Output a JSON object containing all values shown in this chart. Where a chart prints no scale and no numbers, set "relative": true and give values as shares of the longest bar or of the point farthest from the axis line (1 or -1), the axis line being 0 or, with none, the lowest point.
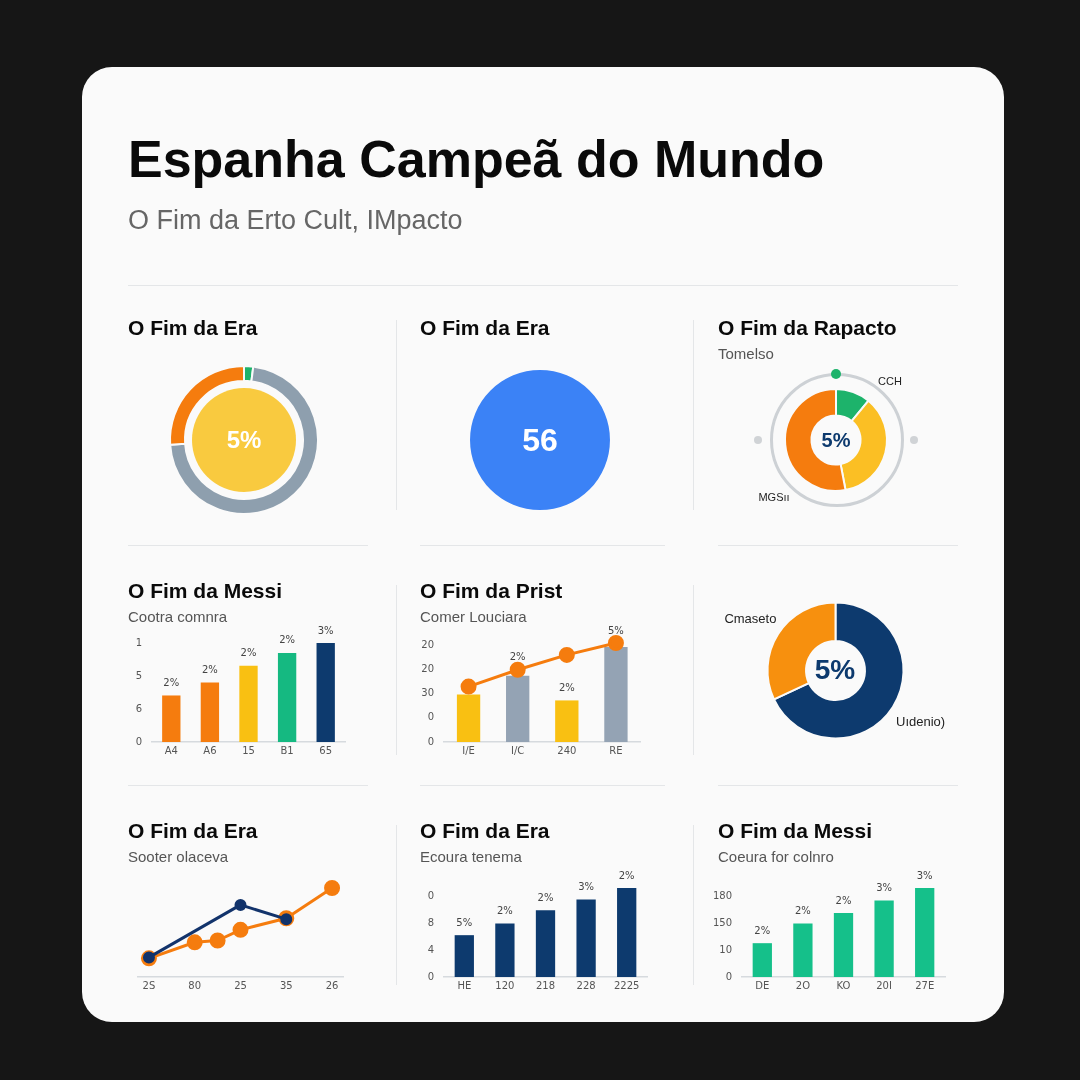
{
  "chart_data": [
    {
      "type": "other",
      "title": "Espanha Campeã do Mundo",
      "subtitle": "O Fim da  Erto Cult, IMpacto"
    },
    {
      "type": "donut",
      "title": "O Fim da Era",
      "categories": [
        null,
        null,
        null
      ],
      "values": [
        2,
        72,
        26
      ],
      "colors": [
        "#1db36b",
        "#8e9fae",
        "#f57c0e"
      ],
      "annotations": [
        "5%"
      ]
    },
    {
      "type": "pie",
      "title": "O Fim da Era",
      "categories": [
        null
      ],
      "values": [
        100
      ],
      "colors": [
        "#3b82f6"
      ],
      "annotations": [
        "56"
      ]
    },
    {
      "type": "donut",
      "title": "O Fim da Rapacto",
      "subtitle": "Tomelso",
      "categories": [
        null,
        null,
        null
      ],
      "values": [
        11,
        36,
        53
      ],
      "colors": [
        "#1db36b",
        "#fbbf24",
        "#f57c0e"
      ],
      "annotations": [
        "5%",
        "CCH",
        "MGSıı"
      ]
    },
    {
      "type": "bar",
      "title": "O Fim da Messi",
      "subtitle": "Cootra comnra",
      "relative": true,
      "categories": [
        "A4",
        "A6",
        "15",
        "B1",
        "65"
      ],
      "values": [
        0.47,
        0.6,
        0.77,
        0.9,
        1
      ],
      "colors": [
        "#f57c0e",
        "#f57c0e",
        "#f9c012",
        "#15b981",
        "#0d3a6e"
      ],
      "annotations": [
        "0",
        "6",
        "5",
        "1",
        {
          "text": "2%",
          "x": "A4",
          "y": 0.47
        },
        {
          "text": "2%",
          "x": "A6",
          "y": 0.6
        },
        {
          "text": "2%",
          "x": "15",
          "y": 0.77
        },
        {
          "text": "2%",
          "x": "B1",
          "y": 0.9
        },
        {
          "text": "3%",
          "x": "65",
          "y": 1
        }
      ]
    },
    {
      "type": "bar",
      "title": "O Fim da Prist",
      "subtitle": "Comer Louciara",
      "relative": true,
      "categories": [
        "I/E",
        "I/C",
        "240",
        "RE"
      ],
      "series": [
        {
          "type": "bar",
          "colors": [
            "#f9c012",
            "#94a3b4",
            "#f9c012",
            "#94a3b4"
          ],
          "values": [
            0.48,
            0.67,
            0.42,
            0.96
          ]
        },
        {
          "type": "line",
          "color": "#f57c0e",
          "values": [
            0.56,
            0.73,
            0.88,
            1
          ]
        }
      ],
      "marker": "circle",
      "annotations": [
        "0",
        "0",
        "30",
        "20",
        "20",
        {
          "text": "2%",
          "x": "I/C",
          "y": 0.73
        },
        {
          "text": "2%",
          "x": "240",
          "y": 0.42
        },
        {
          "text": "5%",
          "x": "RE",
          "y": 1
        }
      ]
    },
    {
      "type": "donut",
      "categories": [
        "Uıdenio)",
        "Cmaseto"
      ],
      "values": [
        68,
        32
      ],
      "colors": [
        "#0d3a6e",
        "#f7900e"
      ],
      "annotations": [
        "5%"
      ]
    },
    {
      "type": "line",
      "title": "O Fim da Era",
      "subtitle": "Sooter olaceva",
      "relative": true,
      "categories": [
        "2S",
        null,
        "80",
        null,
        "25",
        null,
        "35",
        null,
        "26"
      ],
      "marker": "circle",
      "series": [
        {
          "color": "#12336b",
          "values": [
            0.22,
            null,
            null,
            null,
            0.81,
            null,
            0.65,
            null,
            null
          ]
        },
        {
          "color": "#f57c0e",
          "values": [
            0.21,
            null,
            0.39,
            0.41,
            0.53,
            null,
            0.66,
            null,
            1
          ]
        }
      ]
    },
    {
      "type": "bar",
      "title": "O Fim da Era",
      "subtitle": "Ecoura tenema",
      "relative": true,
      "categories": [
        "HE",
        "120",
        "218",
        "228",
        "2225"
      ],
      "values": [
        0.47,
        0.6,
        0.75,
        0.87,
        1
      ],
      "color": "#0d3a6e",
      "annotations": [
        "0",
        "4",
        "8",
        "0",
        {
          "text": "5%",
          "x": "HE",
          "y": 0.47
        },
        {
          "text": "2%",
          "x": "120",
          "y": 0.6
        },
        {
          "text": "2%",
          "x": "218",
          "y": 0.75
        },
        {
          "text": "3%",
          "x": "228",
          "y": 0.87
        },
        {
          "text": "2%",
          "x": "2225",
          "y": 1
        }
      ]
    },
    {
      "type": "bar",
      "title": "O Fim da Messi",
      "subtitle": "Coeura for colnro",
      "relative": true,
      "categories": [
        "DE",
        "2O",
        "KO",
        "20I",
        "27E"
      ],
      "values": [
        0.38,
        0.6,
        0.72,
        0.86,
        1
      ],
      "color": "#15c08a",
      "annotations": [
        "0",
        "10",
        "150",
        "180",
        {
          "text": "2%",
          "x": "DE",
          "y": 0.38
        },
        {
          "text": "2%",
          "x": "2O",
          "y": 0.6
        },
        {
          "text": "2%",
          "x": "KO",
          "y": 0.72
        },
        {
          "text": "3%",
          "x": "20I",
          "y": 0.86
        },
        {
          "text": "3%",
          "x": "27E",
          "y": 1
        }
      ]
    }
  ]
}
